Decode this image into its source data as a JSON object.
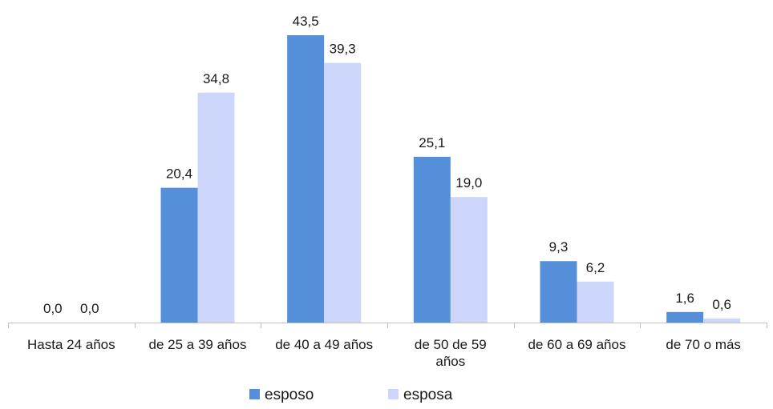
{
  "chart_data": {
    "type": "bar",
    "categories": [
      [
        "Hasta 24 años"
      ],
      [
        "de 25 a 39 años"
      ],
      [
        "de 40 a 49 años"
      ],
      [
        "de 50 de 59",
        "años"
      ],
      [
        "de 60 a 69 años"
      ],
      [
        "de 70 o más"
      ]
    ],
    "series": [
      {
        "name": "esposo",
        "values": [
          0.0,
          20.4,
          43.5,
          25.1,
          9.3,
          1.6
        ],
        "labels": [
          "0,0",
          "20,4",
          "43,5",
          "25,1",
          "9,3",
          "1,6"
        ],
        "color": "#568fd9"
      },
      {
        "name": "esposa",
        "values": [
          0.0,
          34.8,
          39.3,
          19.0,
          6.2,
          0.6
        ],
        "labels": [
          "0,0",
          "34,8",
          "39,3",
          "19,0",
          "6,2",
          "0,6"
        ],
        "color": "#ccd6fa"
      }
    ],
    "title": "",
    "xlabel": "",
    "ylabel": "",
    "ylim": [
      0,
      45
    ],
    "grid": false,
    "legend": "bottom",
    "axis_color": "#bfbfbf"
  }
}
